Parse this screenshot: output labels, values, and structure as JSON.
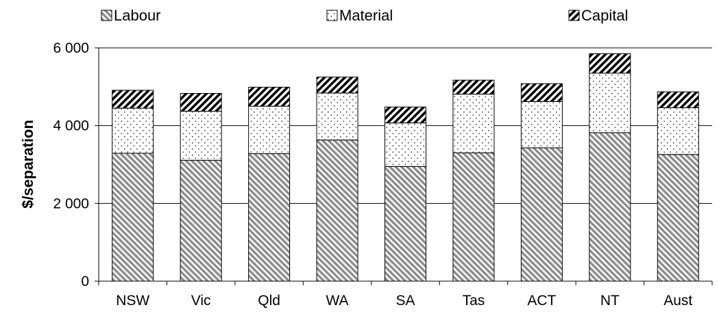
{
  "chart_data": {
    "type": "bar",
    "stacked": true,
    "title": "",
    "xlabel": "",
    "ylabel": "$/separation",
    "ylim": [
      0,
      6000
    ],
    "yticks": [
      0,
      2000,
      4000,
      6000
    ],
    "ytick_labels": [
      "0",
      "2 000",
      "4 000",
      "6 000"
    ],
    "grid": true,
    "legend_position": "top",
    "categories": [
      "NSW",
      "Vic",
      "Qld",
      "WA",
      "SA",
      "Tas",
      "ACT",
      "NT",
      "Aust"
    ],
    "series": [
      {
        "name": "Labour",
        "pattern": "diagonal-hatch-light",
        "values": [
          3290,
          3110,
          3280,
          3630,
          2950,
          3300,
          3430,
          3820,
          3260
        ]
      },
      {
        "name": "Material",
        "pattern": "dotted",
        "values": [
          1160,
          1260,
          1220,
          1210,
          1120,
          1510,
          1190,
          1530,
          1200
        ]
      },
      {
        "name": "Capital",
        "pattern": "diagonal-hatch-dark",
        "values": [
          460,
          460,
          490,
          410,
          410,
          360,
          460,
          500,
          410
        ]
      }
    ]
  }
}
